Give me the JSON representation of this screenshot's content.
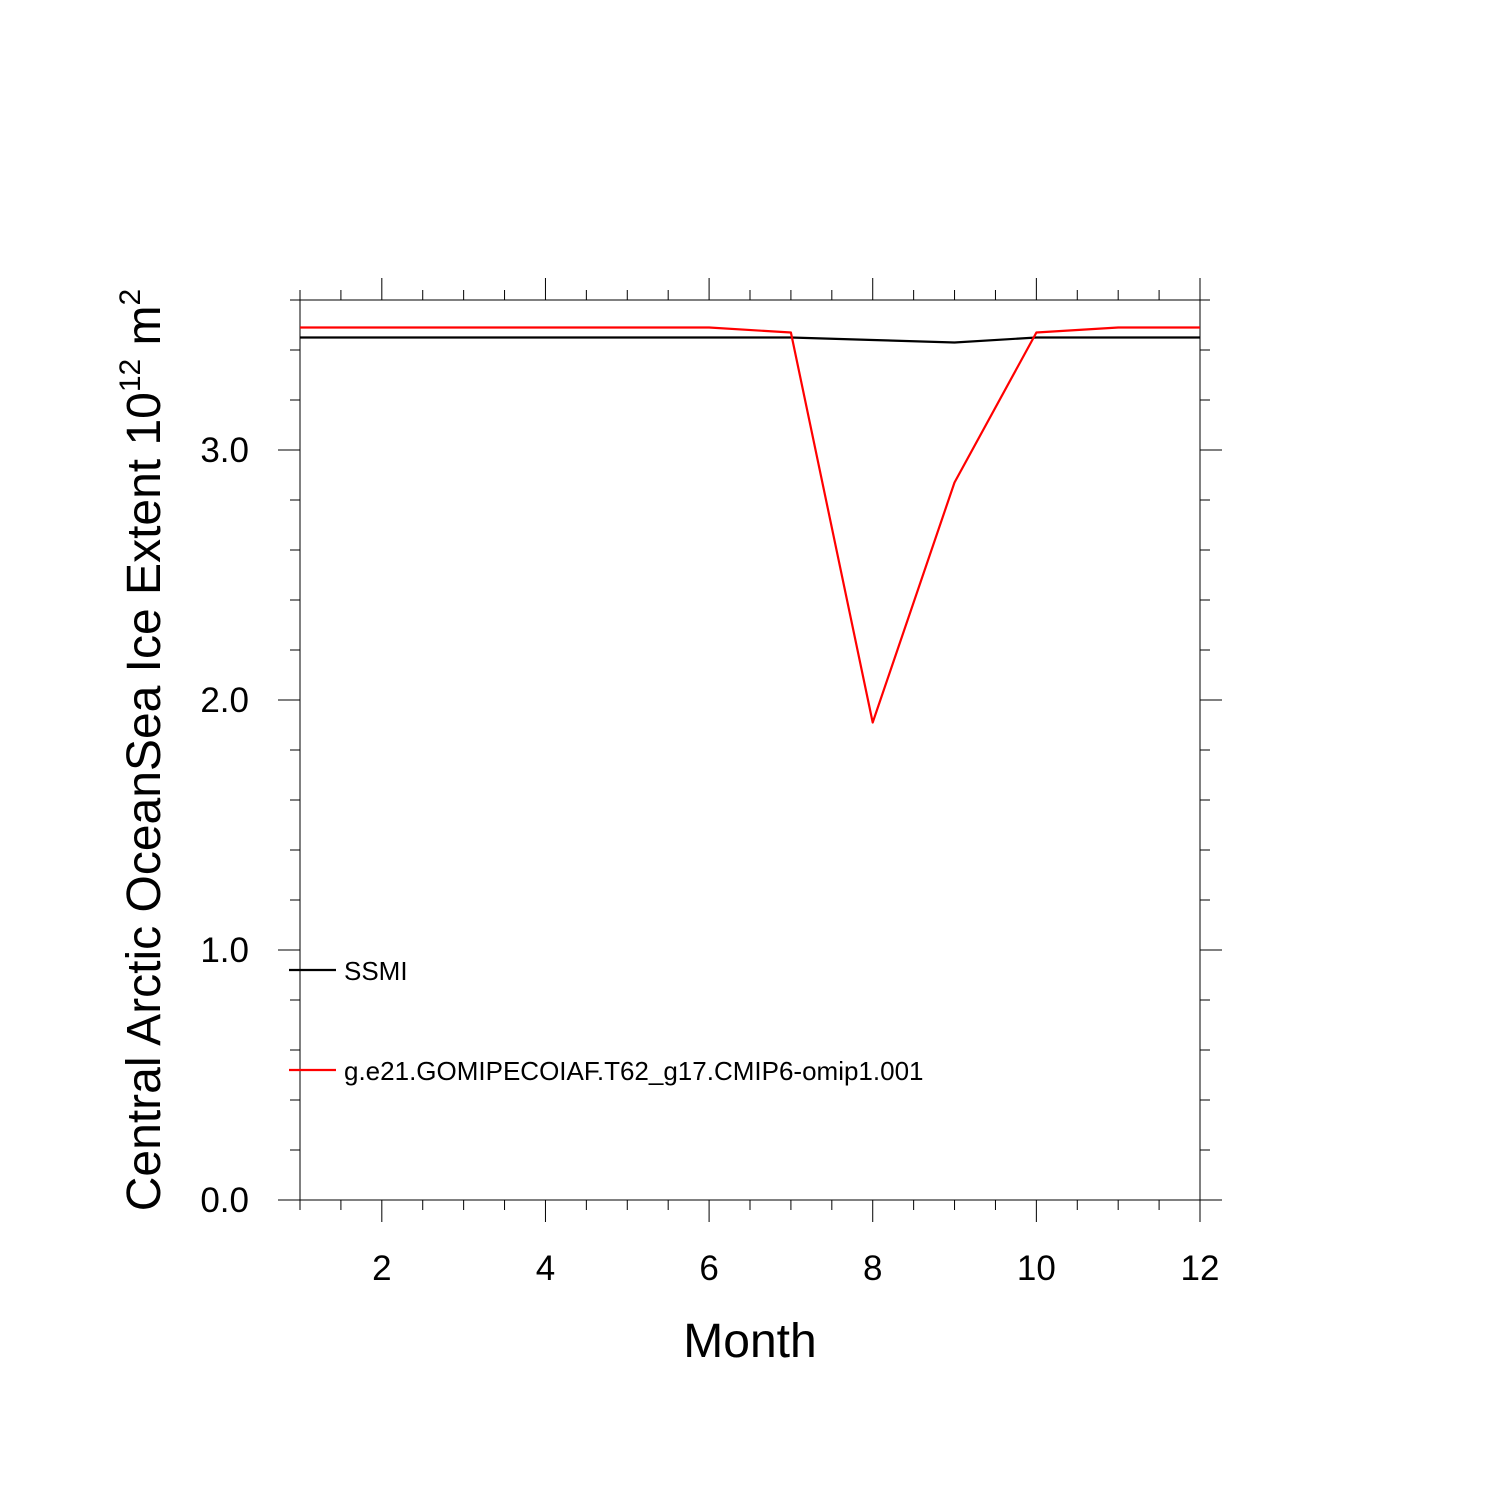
{
  "chart_data": {
    "type": "line",
    "title": "",
    "xlabel": "Month",
    "ylabel": {
      "base": "Central Arctic OceanSea Ice Extent 10",
      "exponent": "12",
      "unit": " m",
      "unit_exponent": "2"
    },
    "xlim": [
      1,
      12
    ],
    "ylim": [
      0.0,
      3.6
    ],
    "x_ticks": [
      2,
      4,
      6,
      8,
      10,
      12
    ],
    "y_ticks": [
      0.0,
      1.0,
      2.0,
      3.0
    ],
    "y_tick_labels": [
      "0.0",
      "1.0",
      "2.0",
      "3.0"
    ],
    "x": [
      1,
      2,
      3,
      4,
      5,
      6,
      7,
      8,
      9,
      10,
      11,
      12
    ],
    "series": [
      {
        "name": "SSMI",
        "color": "#000000",
        "values": [
          3.45,
          3.45,
          3.45,
          3.45,
          3.45,
          3.45,
          3.45,
          3.44,
          3.43,
          3.45,
          3.45,
          3.45
        ]
      },
      {
        "name": "g.e21.GOMIPECOIAF.T62_g17.CMIP6-omip1.001",
        "color": "#ff0000",
        "values": [
          3.49,
          3.49,
          3.49,
          3.49,
          3.49,
          3.49,
          3.47,
          1.91,
          2.87,
          3.47,
          3.49,
          3.49
        ]
      }
    ],
    "grid": false,
    "legend_position": "bottom-left, inside plot"
  }
}
